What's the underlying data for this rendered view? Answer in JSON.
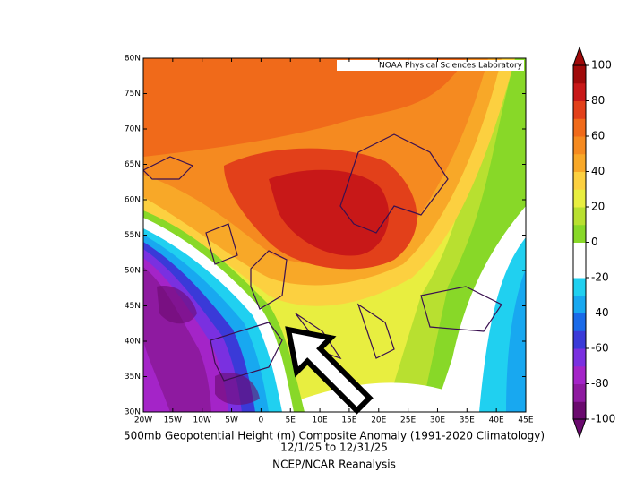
{
  "header": {
    "credit": "NOAA Physical Sciences Laboratory"
  },
  "map": {
    "lat_labels": [
      "80N",
      "75N",
      "70N",
      "65N",
      "60N",
      "55N",
      "50N",
      "45N",
      "40N",
      "35N",
      "30N"
    ],
    "lon_labels": [
      "20W",
      "15W",
      "10W",
      "5W",
      "0",
      "5E",
      "10E",
      "15E",
      "20E",
      "25E",
      "30E",
      "35E",
      "40E",
      "45E"
    ]
  },
  "colorbar": {
    "ticks": [
      100,
      80,
      60,
      40,
      20,
      0,
      -20,
      -40,
      -60,
      -80,
      -100
    ],
    "colors": [
      "#6a0a6e",
      "#8e1aa0",
      "#a424c8",
      "#7a30e0",
      "#3a3ad8",
      "#1a6ae8",
      "#18a8f0",
      "#20d0f0",
      "#ffffff",
      "#ffffff",
      "#88d828",
      "#b8e030",
      "#e8ee40",
      "#fcd040",
      "#f8a828",
      "#f58a20",
      "#f06a1a",
      "#e2401a",
      "#c81818",
      "#a00a0a"
    ]
  },
  "caption": [
    "500mb Geopotential Height (m) Composite Anomaly (1991-2020 Climatology)",
    "12/1/25  to 12/31/25",
    "NCEP/NCAR Reanalysis"
  ]
}
